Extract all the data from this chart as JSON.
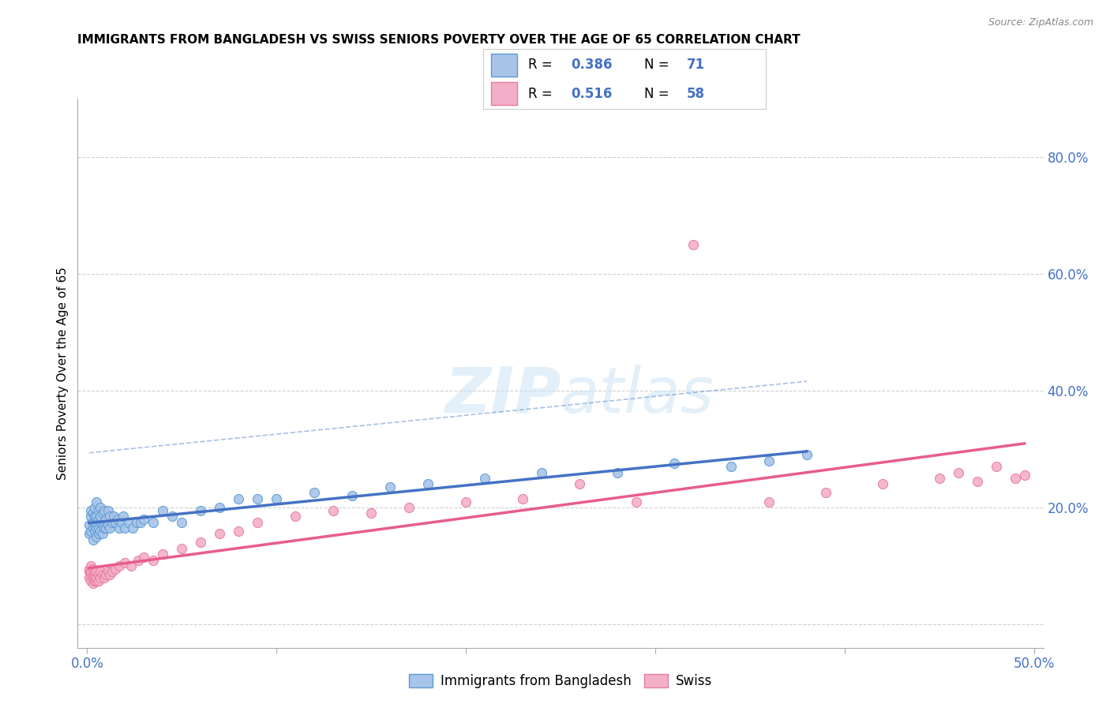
{
  "title": "IMMIGRANTS FROM BANGLADESH VS SWISS SENIORS POVERTY OVER THE AGE OF 65 CORRELATION CHART",
  "source": "Source: ZipAtlas.com",
  "ylabel": "Seniors Poverty Over the Age of 65",
  "xlim": [
    -0.005,
    0.505
  ],
  "ylim": [
    -0.04,
    0.9
  ],
  "xtick_positions": [
    0.0,
    0.1,
    0.2,
    0.3,
    0.4,
    0.5
  ],
  "xticklabels": [
    "0.0%",
    "",
    "",
    "",
    "",
    "50.0%"
  ],
  "ytick_positions": [
    0.0,
    0.2,
    0.4,
    0.6,
    0.8
  ],
  "yticklabels_right": [
    "",
    "20.0%",
    "40.0%",
    "60.0%",
    "80.0%"
  ],
  "legend_labels": [
    "Immigrants from Bangladesh",
    "Swiss"
  ],
  "r_bangladesh": 0.386,
  "n_bangladesh": 71,
  "r_swiss": 0.516,
  "n_swiss": 58,
  "color_bangladesh_fill": "#a8c4e8",
  "color_bangladesh_edge": "#5b9bd5",
  "color_swiss_fill": "#f4afc8",
  "color_swiss_edge": "#e87aa0",
  "color_line_bangladesh": "#4472c4",
  "color_line_swiss": "#e85d8a",
  "color_text_blue": "#4472c4",
  "color_right_axis": "#4472c4",
  "color_grid": "#d0d0d0",
  "bangladesh_x": [
    0.001,
    0.001,
    0.002,
    0.002,
    0.002,
    0.003,
    0.003,
    0.003,
    0.003,
    0.004,
    0.004,
    0.004,
    0.004,
    0.005,
    0.005,
    0.005,
    0.005,
    0.005,
    0.006,
    0.006,
    0.006,
    0.006,
    0.007,
    0.007,
    0.007,
    0.007,
    0.008,
    0.008,
    0.008,
    0.009,
    0.009,
    0.009,
    0.01,
    0.01,
    0.011,
    0.011,
    0.012,
    0.012,
    0.013,
    0.014,
    0.015,
    0.016,
    0.017,
    0.018,
    0.019,
    0.02,
    0.022,
    0.024,
    0.026,
    0.028,
    0.03,
    0.035,
    0.04,
    0.045,
    0.05,
    0.06,
    0.07,
    0.08,
    0.09,
    0.1,
    0.12,
    0.14,
    0.16,
    0.18,
    0.21,
    0.24,
    0.28,
    0.31,
    0.34,
    0.36,
    0.38
  ],
  "bangladesh_y": [
    0.155,
    0.17,
    0.16,
    0.185,
    0.195,
    0.145,
    0.165,
    0.175,
    0.19,
    0.16,
    0.175,
    0.185,
    0.2,
    0.15,
    0.165,
    0.175,
    0.185,
    0.21,
    0.155,
    0.165,
    0.18,
    0.195,
    0.16,
    0.175,
    0.185,
    0.2,
    0.155,
    0.17,
    0.19,
    0.165,
    0.175,
    0.195,
    0.165,
    0.18,
    0.17,
    0.195,
    0.165,
    0.185,
    0.175,
    0.185,
    0.175,
    0.18,
    0.165,
    0.175,
    0.185,
    0.165,
    0.175,
    0.165,
    0.175,
    0.175,
    0.18,
    0.175,
    0.195,
    0.185,
    0.175,
    0.195,
    0.2,
    0.215,
    0.215,
    0.215,
    0.225,
    0.22,
    0.235,
    0.24,
    0.25,
    0.26,
    0.26,
    0.275,
    0.27,
    0.28,
    0.29
  ],
  "swiss_x": [
    0.001,
    0.001,
    0.001,
    0.002,
    0.002,
    0.002,
    0.002,
    0.003,
    0.003,
    0.003,
    0.003,
    0.004,
    0.004,
    0.004,
    0.005,
    0.005,
    0.005,
    0.006,
    0.006,
    0.007,
    0.007,
    0.008,
    0.009,
    0.01,
    0.011,
    0.012,
    0.013,
    0.015,
    0.017,
    0.02,
    0.023,
    0.027,
    0.03,
    0.035,
    0.04,
    0.05,
    0.06,
    0.07,
    0.08,
    0.09,
    0.11,
    0.13,
    0.15,
    0.17,
    0.2,
    0.23,
    0.26,
    0.29,
    0.32,
    0.36,
    0.39,
    0.42,
    0.45,
    0.46,
    0.47,
    0.48,
    0.49,
    0.495
  ],
  "swiss_y": [
    0.08,
    0.09,
    0.095,
    0.075,
    0.085,
    0.09,
    0.1,
    0.07,
    0.08,
    0.085,
    0.095,
    0.075,
    0.085,
    0.09,
    0.075,
    0.08,
    0.09,
    0.075,
    0.085,
    0.08,
    0.09,
    0.085,
    0.08,
    0.085,
    0.09,
    0.085,
    0.09,
    0.095,
    0.1,
    0.105,
    0.1,
    0.11,
    0.115,
    0.11,
    0.12,
    0.13,
    0.14,
    0.155,
    0.16,
    0.175,
    0.185,
    0.195,
    0.19,
    0.2,
    0.21,
    0.215,
    0.24,
    0.21,
    0.65,
    0.21,
    0.225,
    0.24,
    0.25,
    0.26,
    0.245,
    0.27,
    0.25,
    0.255
  ]
}
